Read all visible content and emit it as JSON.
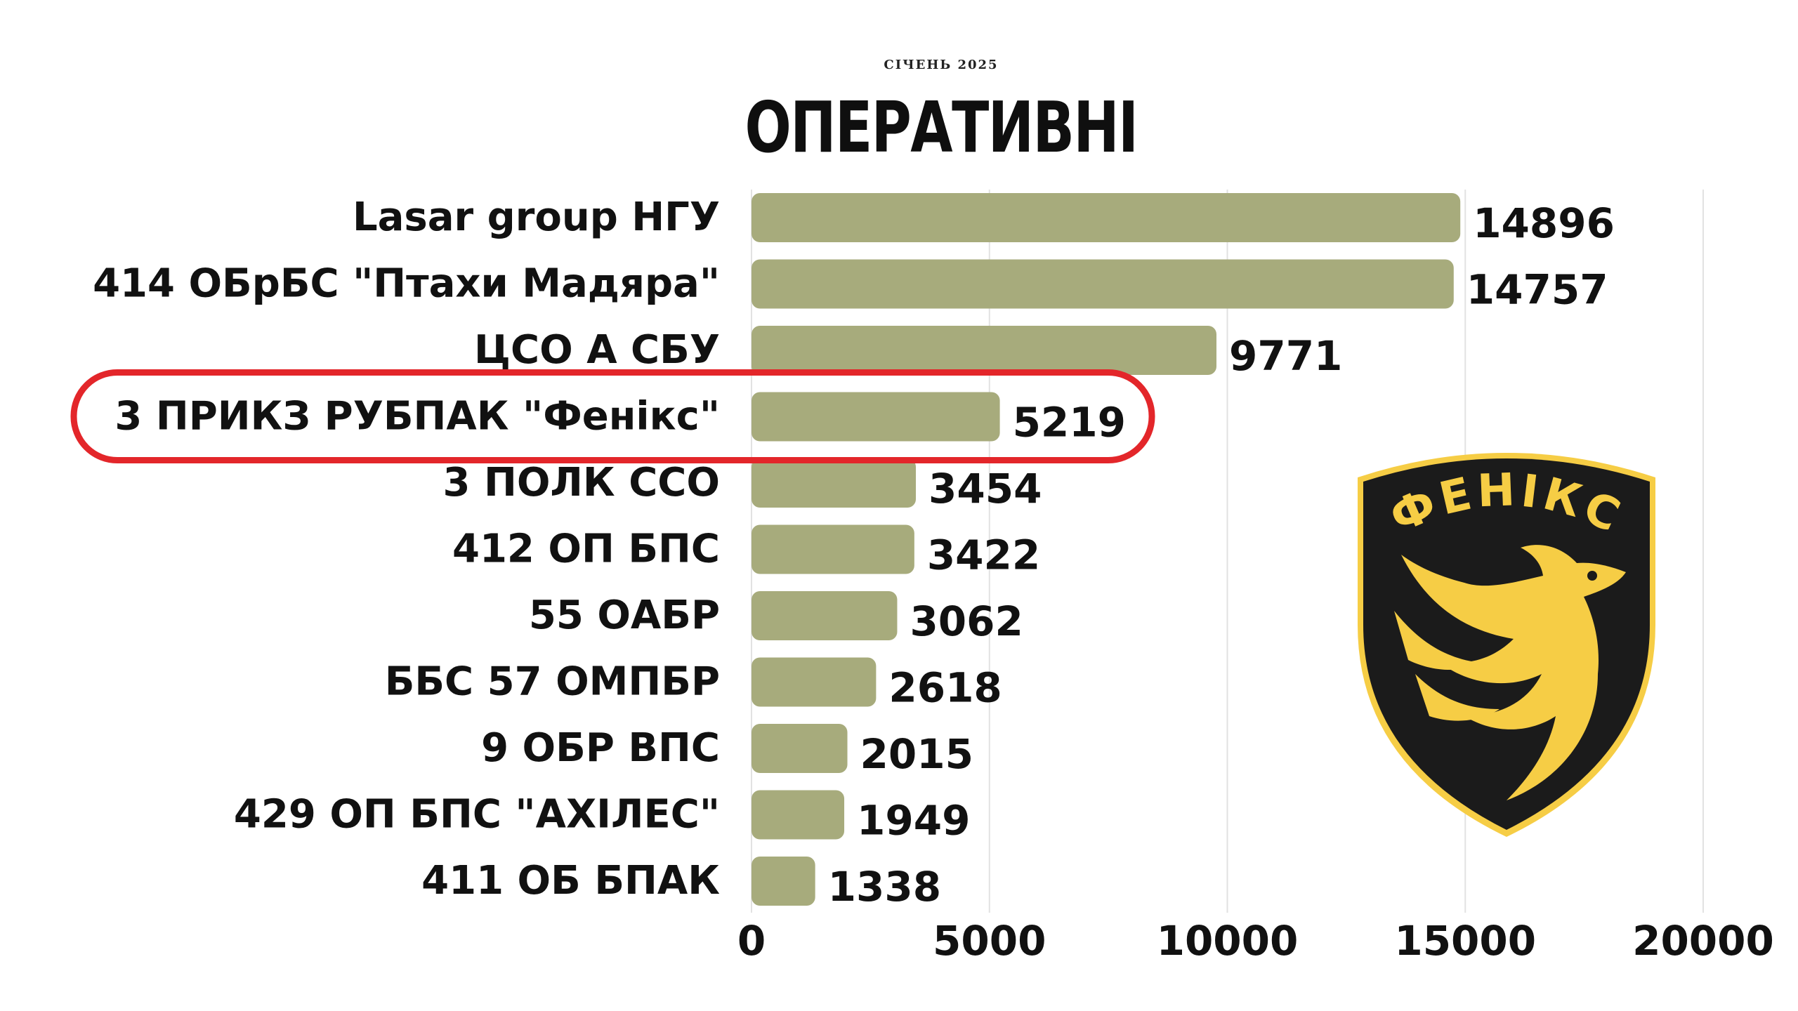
{
  "header": {
    "subtitle": "СІЧЕНЬ 2025",
    "title": "ОПЕРАТИВНІ"
  },
  "emblem": {
    "text": "ФЕНІКС",
    "colors": {
      "shield": "#1b1b1b",
      "gold": "#f6cd45"
    }
  },
  "colors": {
    "bar": "#a7ab7c",
    "highlight_outline": "#e3262a",
    "grid": "#e2e2e2",
    "text": "#111111"
  },
  "chart_data": {
    "type": "bar",
    "orientation": "horizontal",
    "title": "ОПЕРАТИВНІ",
    "subtitle": "СІЧЕНЬ 2025",
    "categories": [
      "Lasar group НГУ",
      "414 ОБрБС \"Птахи Мадяра\"",
      "ЦСО А СБУ",
      "3 ПРИКЗ РУБПАК \"Фенікс\"",
      "3 ПОЛК ССО",
      "412 ОП БПС",
      "55 ОАБР",
      "ББС 57 ОМПБР",
      "9 ОБР ВПС",
      "429 ОП БПС \"АХІЛЕС\"",
      "411 ОБ БПАК"
    ],
    "values": [
      14896,
      14757,
      9771,
      5219,
      3454,
      3422,
      3062,
      2618,
      2015,
      1949,
      1338
    ],
    "xlim": [
      0,
      20000
    ],
    "xticks": [
      0,
      5000,
      10000,
      15000,
      20000
    ],
    "highlighted_category": "3 ПРИКЗ РУБПАК \"Фенікс\"",
    "grid": "vertical",
    "legend": "none"
  }
}
